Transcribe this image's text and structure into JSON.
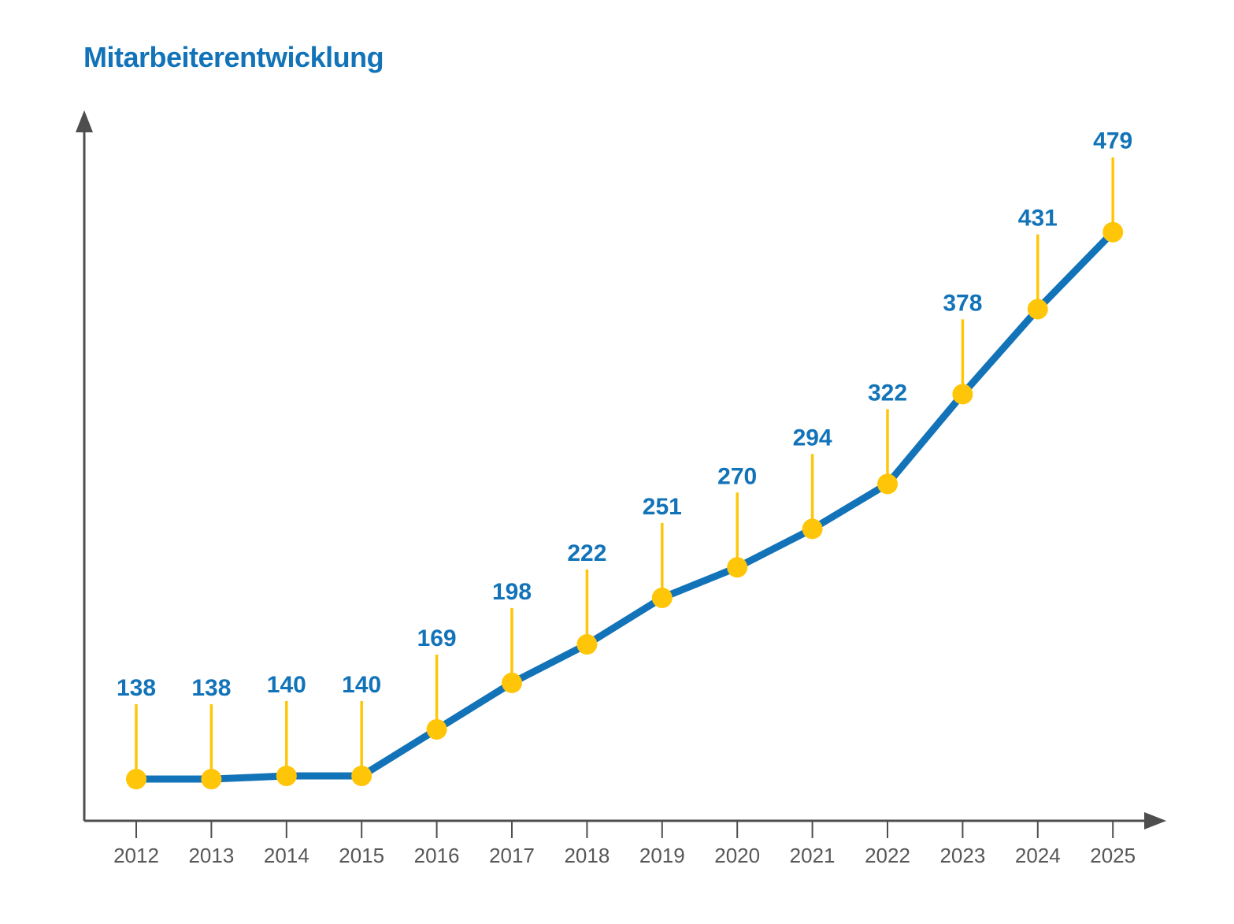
{
  "page": {
    "title": "Mitarbeiterentwicklung"
  },
  "colors": {
    "accent_blue": "#1273b8",
    "accent_yellow": "#ffc609",
    "axis_gray": "#4e4e4e",
    "tick_label_gray": "#575756",
    "background": "#ffffff"
  },
  "chart_data": {
    "type": "line",
    "title": "Mitarbeiterentwicklung",
    "categories": [
      "2012",
      "2013",
      "2014",
      "2015",
      "2016",
      "2017",
      "2018",
      "2019",
      "2020",
      "2021",
      "2022",
      "2023",
      "2024",
      "2025"
    ],
    "values": [
      138,
      138,
      140,
      140,
      169,
      198,
      222,
      251,
      270,
      294,
      322,
      378,
      431,
      479
    ],
    "xlabel": "",
    "ylabel": "",
    "ylim": [
      112,
      555
    ],
    "grid": false,
    "legend": false,
    "marker": "circle",
    "point_labels_visible": true,
    "axis_arrows": true
  }
}
